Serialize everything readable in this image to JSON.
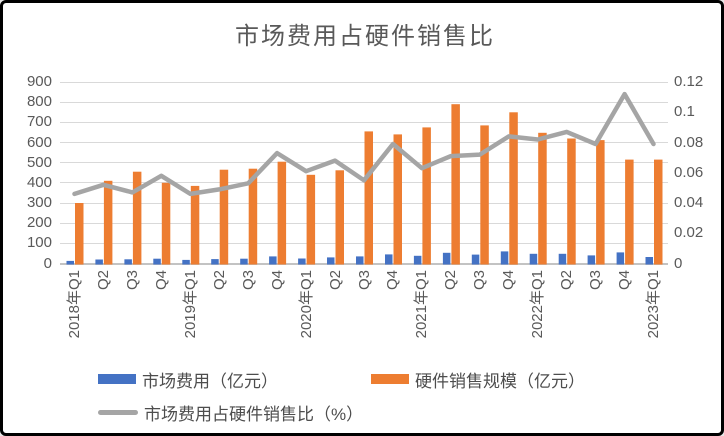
{
  "chart_data": {
    "type": "combo-bar-line",
    "title": "市场费用占硬件销售比",
    "categories": [
      "2018年Q1",
      "Q2",
      "Q3",
      "Q4",
      "2019年Q1",
      "Q2",
      "Q3",
      "Q4",
      "2020年Q1",
      "Q2",
      "Q3",
      "Q4",
      "2021年Q1",
      "Q2",
      "Q3",
      "Q4",
      "2022年Q1",
      "Q2",
      "Q3",
      "Q4",
      "2023年Q1"
    ],
    "series": [
      {
        "name": "市场费用（亿元）",
        "type": "bar",
        "axis": "left",
        "color": "#4472C4",
        "values": [
          13,
          20,
          21,
          24,
          18,
          22,
          24,
          35,
          25,
          30,
          35,
          45,
          38,
          53,
          44,
          60,
          48,
          48,
          40,
          55,
          32
        ]
      },
      {
        "name": "硬件销售规模（亿元）",
        "type": "bar",
        "axis": "left",
        "color": "#ED7D31",
        "values": [
          300,
          410,
          455,
          400,
          385,
          465,
          470,
          505,
          440,
          462,
          655,
          640,
          675,
          790,
          685,
          750,
          648,
          620,
          612,
          515,
          515
        ]
      },
      {
        "name": "市场费用占硬件销售比（%）",
        "type": "line",
        "axis": "right",
        "color": "#A5A5A5",
        "values": [
          0.046,
          0.052,
          0.047,
          0.058,
          0.046,
          0.049,
          0.053,
          0.073,
          0.061,
          0.068,
          0.055,
          0.079,
          0.063,
          0.071,
          0.072,
          0.084,
          0.082,
          0.087,
          0.079,
          0.112,
          0.079
        ]
      }
    ],
    "left_axis": {
      "min": 0,
      "max": 900,
      "step": 100,
      "ticks": [
        "900",
        "800",
        "700",
        "600",
        "500",
        "400",
        "300",
        "200",
        "100",
        "0"
      ]
    },
    "right_axis": {
      "min": 0,
      "max": 0.12,
      "step": 0.02,
      "ticks": [
        "0.12",
        "0.1",
        "0.08",
        "0.06",
        "0.04",
        "0.02",
        "0"
      ]
    },
    "grid": true,
    "legend_position": "bottom"
  },
  "colors": {
    "gridline": "#D9D9D9",
    "axis_line": "#C3C3C3",
    "axis_text": "#595959",
    "title_text": "#595959",
    "legend_text": "#4D4D4D",
    "background": "#FFFFFF",
    "border": "#000000"
  }
}
